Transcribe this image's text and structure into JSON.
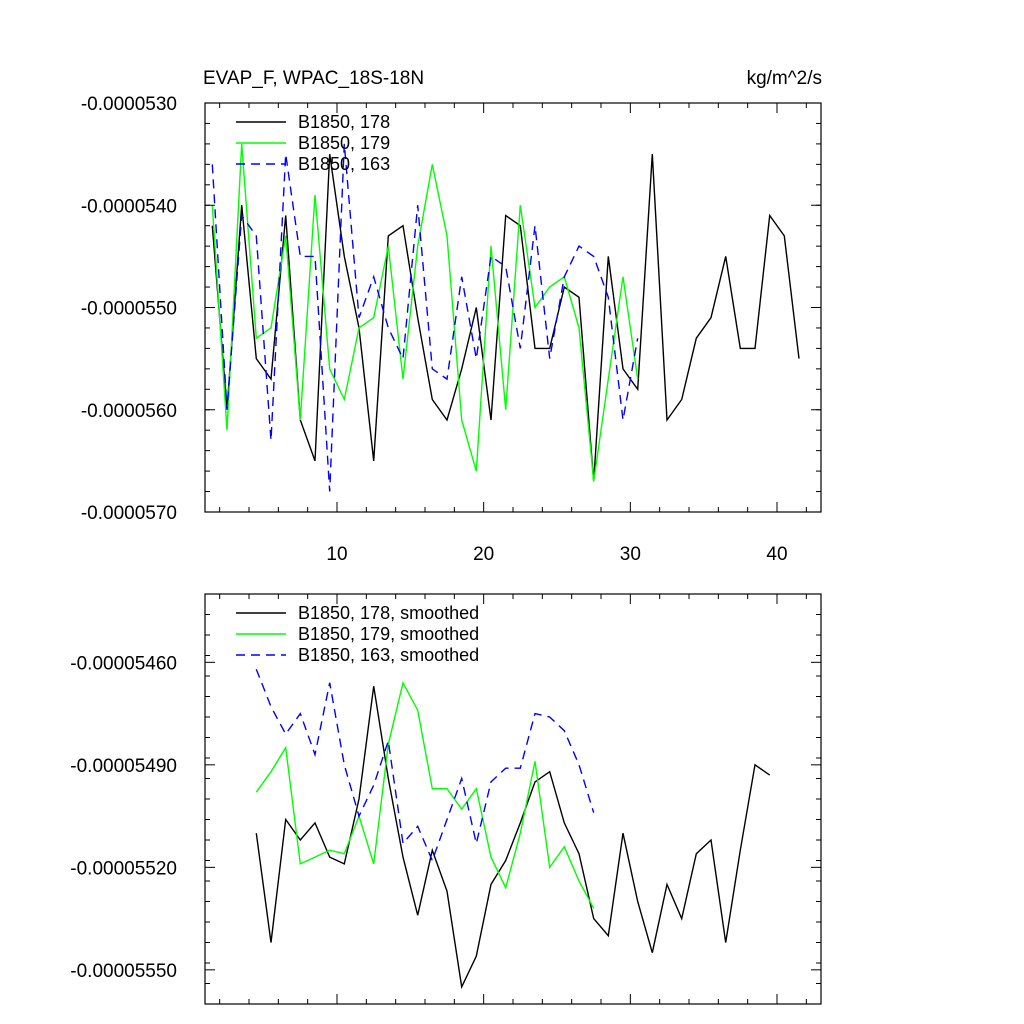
{
  "chart_data": [
    {
      "type": "line",
      "title": "EVAP_F, WPAC_18S-18N",
      "units": "kg/m^2/s",
      "xlim": [
        1,
        43
      ],
      "ylim": [
        -5.7e-05,
        -5.3e-05
      ],
      "xticks": [
        10,
        20,
        30,
        40
      ],
      "xtick_labels": [
        "10",
        "20",
        "30",
        "40"
      ],
      "yticks": [
        -5.3e-05,
        -5.4e-05,
        -5.5e-05,
        -5.6e-05,
        -5.7e-05
      ],
      "ytick_labels": [
        "-0.0000530",
        "-0.0000540",
        "-0.0000550",
        "-0.0000560",
        "-0.0000570"
      ],
      "legend": [
        "B1850, 178",
        "B1850, 179",
        "B1850, 163"
      ],
      "series": [
        {
          "name": "B1850, 178",
          "color": "#000000",
          "dash": "solid",
          "x_start": 1.5,
          "values": [
            -5.42e-05,
            -5.6e-05,
            -5.4e-05,
            -5.55e-05,
            -5.57e-05,
            -5.41e-05,
            -5.61e-05,
            -5.65e-05,
            -5.35e-05,
            -5.45e-05,
            -5.52e-05,
            -5.65e-05,
            -5.43e-05,
            -5.42e-05,
            -5.51e-05,
            -5.59e-05,
            -5.61e-05,
            -5.56e-05,
            -5.5e-05,
            -5.61e-05,
            -5.41e-05,
            -5.42e-05,
            -5.54e-05,
            -5.54e-05,
            -5.48e-05,
            -5.49e-05,
            -5.67e-05,
            -5.45e-05,
            -5.56e-05,
            -5.58e-05,
            -5.35e-05,
            -5.61e-05,
            -5.59e-05,
            -5.53e-05,
            -5.51e-05,
            -5.45e-05,
            -5.54e-05,
            -5.54e-05,
            -5.41e-05,
            -5.43e-05,
            -5.55e-05
          ]
        },
        {
          "name": "B1850, 179",
          "color": "#00ff00",
          "dash": "solid",
          "x_start": 1.5,
          "values": [
            -5.4e-05,
            -5.62e-05,
            -5.34e-05,
            -5.53e-05,
            -5.52e-05,
            -5.43e-05,
            -5.61e-05,
            -5.39e-05,
            -5.56e-05,
            -5.59e-05,
            -5.52e-05,
            -5.51e-05,
            -5.44e-05,
            -5.57e-05,
            -5.44e-05,
            -5.36e-05,
            -5.43e-05,
            -5.61e-05,
            -5.66e-05,
            -5.44e-05,
            -5.6e-05,
            -5.4e-05,
            -5.5e-05,
            -5.48e-05,
            -5.47e-05,
            -5.52e-05,
            -5.67e-05,
            -5.57e-05,
            -5.47e-05,
            -5.57e-05
          ]
        },
        {
          "name": "B1850, 163",
          "color": "#0000ff",
          "dash": "dashed",
          "x_start": 1.5,
          "values": [
            -5.36e-05,
            -5.6e-05,
            -5.41e-05,
            -5.43e-05,
            -5.63e-05,
            -5.35e-05,
            -5.45e-05,
            -5.45e-05,
            -5.68e-05,
            -5.34e-05,
            -5.51e-05,
            -5.47e-05,
            -5.52e-05,
            -5.55e-05,
            -5.4e-05,
            -5.56e-05,
            -5.57e-05,
            -5.47e-05,
            -5.55e-05,
            -5.45e-05,
            -5.46e-05,
            -5.54e-05,
            -5.42e-05,
            -5.55e-05,
            -5.47e-05,
            -5.44e-05,
            -5.45e-05,
            -5.49e-05,
            -5.61e-05,
            -5.53e-05
          ]
        }
      ]
    },
    {
      "type": "line",
      "xlim": [
        1,
        43
      ],
      "ylim": [
        -5.56e-05,
        -5.44e-05
      ],
      "xticks": [
        10,
        20,
        30,
        40
      ],
      "yticks": [
        -5.46e-05,
        -5.49e-05,
        -5.52e-05,
        -5.55e-05
      ],
      "ytick_labels": [
        "-0.00005460",
        "-0.00005490",
        "-0.00005520",
        "-0.00005550"
      ],
      "legend": [
        "B1850, 178, smoothed",
        "B1850, 179, smoothed",
        "B1850, 163, smoothed"
      ],
      "series": [
        {
          "name": "B1850, 178, smoothed",
          "color": "#000000",
          "dash": "solid",
          "x_start": 4.5,
          "values": [
            -5.51e-05,
            -5.542e-05,
            -5.506e-05,
            -5.512e-05,
            -5.507e-05,
            -5.517e-05,
            -5.519e-05,
            -5.5e-05,
            -5.467e-05,
            -5.494e-05,
            -5.517e-05,
            -5.534e-05,
            -5.515e-05,
            -5.527e-05,
            -5.555e-05,
            -5.546e-05,
            -5.525e-05,
            -5.518e-05,
            -5.507e-05,
            -5.495e-05,
            -5.492e-05,
            -5.507e-05,
            -5.516e-05,
            -5.535e-05,
            -5.54e-05,
            -5.51e-05,
            -5.53e-05,
            -5.545e-05,
            -5.525e-05,
            -5.535e-05,
            -5.516e-05,
            -5.512e-05,
            -5.542e-05,
            -5.515e-05,
            -5.49e-05,
            -5.493e-05
          ]
        },
        {
          "name": "B1850, 179, smoothed",
          "color": "#00ff00",
          "dash": "solid",
          "x_start": 4.5,
          "values": [
            -5.498e-05,
            -5.492e-05,
            -5.485e-05,
            -5.519e-05,
            -5.517e-05,
            -5.515e-05,
            -5.516e-05,
            -5.505e-05,
            -5.519e-05,
            -5.484e-05,
            -5.466e-05,
            -5.474e-05,
            -5.497e-05,
            -5.497e-05,
            -5.503e-05,
            -5.497e-05,
            -5.517e-05,
            -5.526e-05,
            -5.51e-05,
            -5.489e-05,
            -5.52e-05,
            -5.514e-05,
            -5.524e-05,
            -5.532e-05
          ]
        },
        {
          "name": "B1850, 163, smoothed",
          "color": "#0000ff",
          "dash": "dashed",
          "x_start": 4.5,
          "values": [
            -5.462e-05,
            -5.473e-05,
            -5.481e-05,
            -5.475e-05,
            -5.487e-05,
            -5.466e-05,
            -5.49e-05,
            -5.505e-05,
            -5.496e-05,
            -5.483e-05,
            -5.513e-05,
            -5.508e-05,
            -5.518e-05,
            -5.506e-05,
            -5.494e-05,
            -5.513e-05,
            -5.495e-05,
            -5.491e-05,
            -5.491e-05,
            -5.475e-05,
            -5.476e-05,
            -5.48e-05,
            -5.49e-05,
            -5.504e-05
          ]
        }
      ]
    }
  ]
}
